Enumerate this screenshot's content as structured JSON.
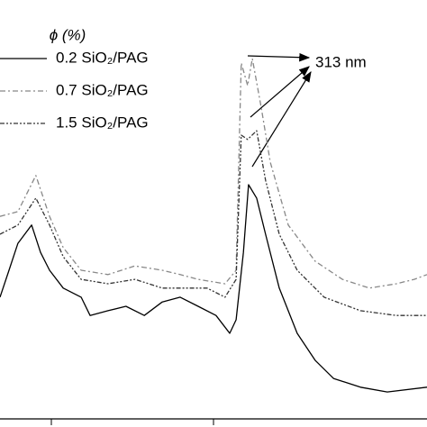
{
  "chart_data": {
    "type": "line",
    "legend_title": "ϕ (%)",
    "annotation": "313 nm",
    "xlim": [
      0,
      100
    ],
    "ylim": [
      0,
      100
    ],
    "series": [
      {
        "name": "0.2 SiO₂/PAG",
        "color": "#000000",
        "x": [
          0,
          2.1,
          4.2,
          7.4,
          9.5,
          11.6,
          14.8,
          19,
          21.1,
          25.3,
          29.5,
          33.8,
          38,
          42.2,
          46.4,
          50.6,
          53.8,
          55.3,
          57,
          58.2,
          60.1,
          62.2,
          65.4,
          69.6,
          73.8,
          78.1,
          84.4,
          90.7,
          100
        ],
        "values": [
          30.7,
          37.5,
          44.3,
          48.9,
          42,
          37.5,
          33,
          30.7,
          26.1,
          27.3,
          28.4,
          26.1,
          29.5,
          30.7,
          28.4,
          26.1,
          21.6,
          25,
          42,
          59.1,
          55.7,
          46.6,
          33,
          21.6,
          14.8,
          10.2,
          8,
          6.8,
          8
        ]
      },
      {
        "name": "0.7 SiO₂/PAG",
        "color": "#888888",
        "x": [
          0,
          4.2,
          8.4,
          11.6,
          14.8,
          19,
          25.3,
          31.6,
          38,
          42.2,
          46.4,
          52.7,
          55.3,
          56.5,
          58,
          59.1,
          61.2,
          63.3,
          67.5,
          73.8,
          80.2,
          86.5,
          92.8,
          97,
          100
        ],
        "values": [
          51.1,
          52.3,
          61.4,
          51.1,
          43.2,
          37.5,
          36.4,
          38.6,
          37.5,
          36.4,
          35.2,
          34.1,
          37.5,
          89.8,
          84.1,
          90.9,
          78.4,
          64.8,
          48.9,
          39.8,
          35.2,
          33,
          34.1,
          35.2,
          36.4
        ]
      },
      {
        "name": "1.5 SiO₂/PAG",
        "color": "#333333",
        "x": [
          0,
          4.2,
          8.4,
          11.6,
          14.8,
          19,
          25.3,
          31.6,
          38,
          42.2,
          48.5,
          52.7,
          55.3,
          56.5,
          58,
          60.1,
          62.2,
          65.4,
          69.6,
          75.9,
          84.4,
          92.8,
          100
        ],
        "values": [
          46.6,
          48.9,
          55.7,
          48.9,
          40.9,
          35.2,
          34.1,
          35.2,
          33,
          33,
          33,
          30.7,
          35.2,
          71.6,
          70.5,
          72.7,
          60.2,
          46.6,
          37.5,
          30.7,
          27.3,
          26.1,
          26.1
        ]
      }
    ]
  }
}
